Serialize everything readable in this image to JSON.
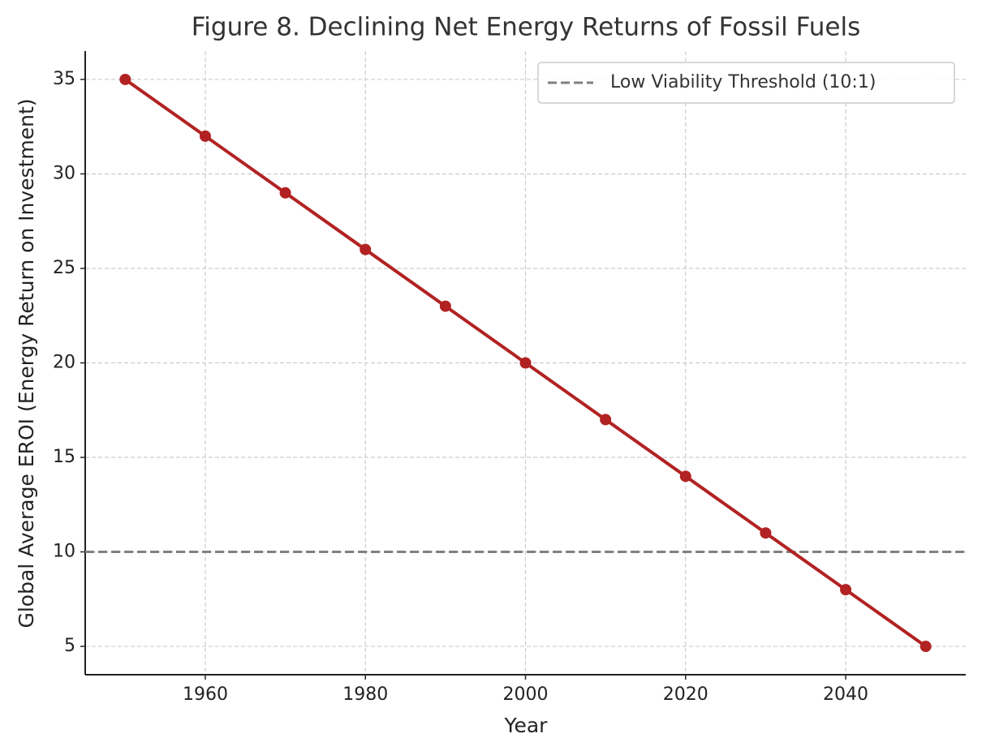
{
  "chart_data": {
    "type": "line",
    "title": "Figure 8. Declining Net Energy Returns of Fossil Fuels",
    "xlabel": "Year",
    "ylabel": "Global Average EROI (Energy Return on Investment)",
    "x": [
      1950,
      1960,
      1970,
      1980,
      1990,
      2000,
      2010,
      2020,
      2030,
      2040,
      2050
    ],
    "series": [
      {
        "color": "#b22222",
        "values": [
          35,
          32,
          29,
          26,
          23,
          20,
          17,
          14,
          11,
          8,
          5
        ]
      }
    ],
    "reference_lines": [
      {
        "label": "Low Viability Threshold (10:1)",
        "value": 10,
        "color": "#808080"
      }
    ],
    "xlim": [
      1945,
      2055
    ],
    "xticks": [
      1960,
      1980,
      2000,
      2020,
      2040
    ],
    "ylim": [
      3.5,
      36.5
    ],
    "yticks": [
      5,
      10,
      15,
      20,
      25,
      30,
      35
    ],
    "grid": true,
    "legend": "upper right"
  }
}
